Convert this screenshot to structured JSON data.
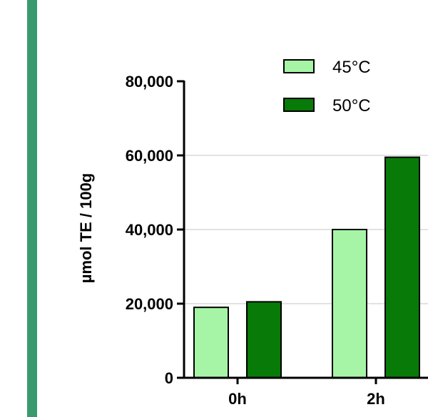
{
  "chart_data": {
    "type": "bar",
    "ylabel": "µmol TE / 100g",
    "xlabel": "",
    "ylim": [
      0,
      80000
    ],
    "yticks": [
      0,
      20000,
      40000,
      60000,
      80000
    ],
    "ytick_labels": [
      "0",
      "20,000",
      "40,000",
      "60,000",
      "80,000"
    ],
    "categories": [
      "0h",
      "2h"
    ],
    "series": [
      {
        "name": "45°C",
        "color": "#a6f5a6",
        "values": [
          19000,
          40000
        ]
      },
      {
        "name": "50°C",
        "color": "#087a08",
        "values": [
          20500,
          59500
        ]
      }
    ],
    "grid": "horizontal",
    "legend": "top-right"
  },
  "colors": {
    "accent_stripe": "#3a9a6e",
    "gridline": "#d9d9d9",
    "axis": "#000000"
  }
}
